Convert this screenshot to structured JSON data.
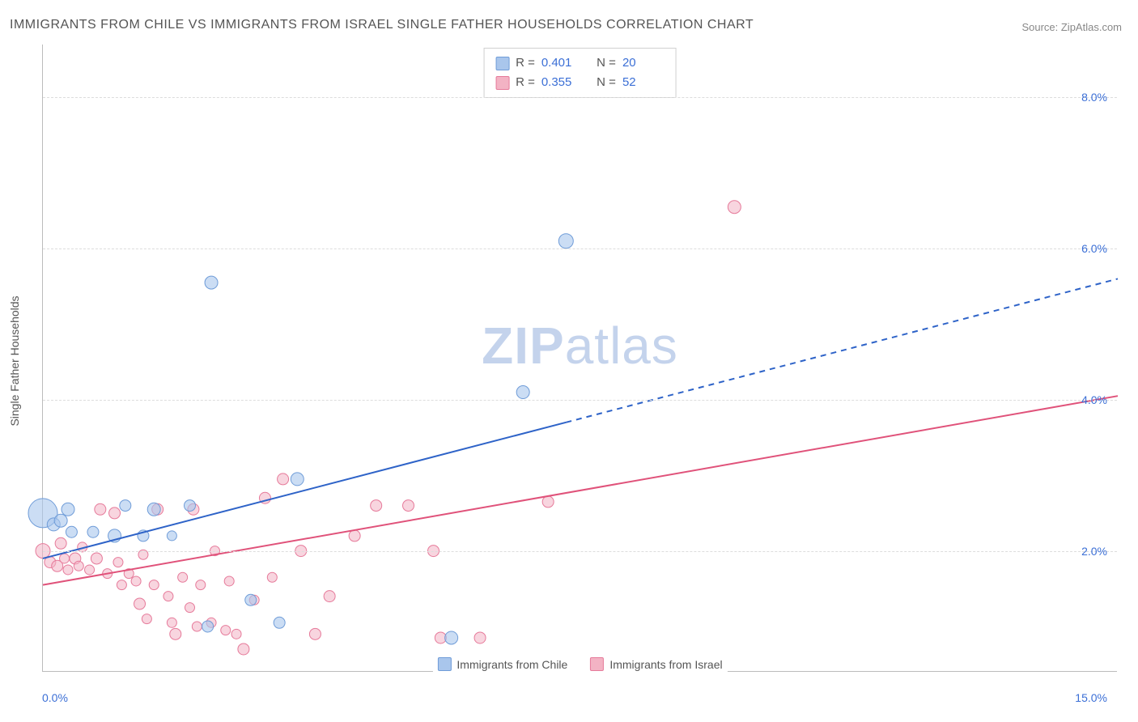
{
  "title": "IMMIGRANTS FROM CHILE VS IMMIGRANTS FROM ISRAEL SINGLE FATHER HOUSEHOLDS CORRELATION CHART",
  "source": "Source: ZipAtlas.com",
  "watermark_bold": "ZIP",
  "watermark_light": "atlas",
  "y_axis_title": "Single Father Households",
  "chart": {
    "type": "scatter",
    "background_color": "#ffffff",
    "grid_color": "#dddddd",
    "axis_color": "#bbbbbb",
    "tick_label_color": "#3b6fd6",
    "xlim": [
      0,
      15
    ],
    "ylim": [
      0.4,
      8.7
    ],
    "x_ticks": [
      {
        "value": 0,
        "label": "0.0%"
      },
      {
        "value": 15,
        "label": "15.0%"
      }
    ],
    "y_ticks": [
      {
        "value": 2,
        "label": "2.0%"
      },
      {
        "value": 4,
        "label": "4.0%"
      },
      {
        "value": 6,
        "label": "6.0%"
      },
      {
        "value": 8,
        "label": "8.0%"
      }
    ],
    "series": [
      {
        "name": "Immigrants from Chile",
        "marker_fill": "#a9c6ec",
        "marker_stroke": "#6f9cd8",
        "marker_fill_opacity": 0.6,
        "line_color": "#2e63c8",
        "line_width": 2,
        "r_value": "0.401",
        "n_value": "20",
        "trend": {
          "x1": 0,
          "y1": 1.9,
          "x2": 15,
          "y2": 5.6,
          "solid_until_x": 7.3
        },
        "points": [
          {
            "x": 0.0,
            "y": 2.5,
            "r": 18
          },
          {
            "x": 0.15,
            "y": 2.35,
            "r": 8
          },
          {
            "x": 0.25,
            "y": 2.4,
            "r": 8
          },
          {
            "x": 0.35,
            "y": 2.55,
            "r": 8
          },
          {
            "x": 0.4,
            "y": 2.25,
            "r": 7
          },
          {
            "x": 0.7,
            "y": 2.25,
            "r": 7
          },
          {
            "x": 1.0,
            "y": 2.2,
            "r": 8
          },
          {
            "x": 1.15,
            "y": 2.6,
            "r": 7
          },
          {
            "x": 1.4,
            "y": 2.2,
            "r": 7
          },
          {
            "x": 1.55,
            "y": 2.55,
            "r": 8
          },
          {
            "x": 1.8,
            "y": 2.2,
            "r": 6
          },
          {
            "x": 2.05,
            "y": 2.6,
            "r": 7
          },
          {
            "x": 2.3,
            "y": 1.0,
            "r": 7
          },
          {
            "x": 2.35,
            "y": 5.55,
            "r": 8
          },
          {
            "x": 2.9,
            "y": 1.35,
            "r": 7
          },
          {
            "x": 3.3,
            "y": 1.05,
            "r": 7
          },
          {
            "x": 3.55,
            "y": 2.95,
            "r": 8
          },
          {
            "x": 5.7,
            "y": 0.85,
            "r": 8
          },
          {
            "x": 6.7,
            "y": 4.1,
            "r": 8
          },
          {
            "x": 7.3,
            "y": 6.1,
            "r": 9
          }
        ]
      },
      {
        "name": "Immigrants from Israel",
        "marker_fill": "#f3b3c4",
        "marker_stroke": "#e67a9a",
        "marker_fill_opacity": 0.55,
        "line_color": "#e0527a",
        "line_width": 2,
        "r_value": "0.355",
        "n_value": "52",
        "trend": {
          "x1": 0,
          "y1": 1.55,
          "x2": 15,
          "y2": 4.05,
          "solid_until_x": 15
        },
        "points": [
          {
            "x": 0.0,
            "y": 2.0,
            "r": 9
          },
          {
            "x": 0.1,
            "y": 1.85,
            "r": 7
          },
          {
            "x": 0.2,
            "y": 1.8,
            "r": 7
          },
          {
            "x": 0.25,
            "y": 2.1,
            "r": 7
          },
          {
            "x": 0.3,
            "y": 1.9,
            "r": 6
          },
          {
            "x": 0.35,
            "y": 1.75,
            "r": 6
          },
          {
            "x": 0.45,
            "y": 1.9,
            "r": 7
          },
          {
            "x": 0.5,
            "y": 1.8,
            "r": 6
          },
          {
            "x": 0.55,
            "y": 2.05,
            "r": 6
          },
          {
            "x": 0.65,
            "y": 1.75,
            "r": 6
          },
          {
            "x": 0.75,
            "y": 1.9,
            "r": 7
          },
          {
            "x": 0.8,
            "y": 2.55,
            "r": 7
          },
          {
            "x": 0.9,
            "y": 1.7,
            "r": 6
          },
          {
            "x": 1.0,
            "y": 2.5,
            "r": 7
          },
          {
            "x": 1.05,
            "y": 1.85,
            "r": 6
          },
          {
            "x": 1.1,
            "y": 1.55,
            "r": 6
          },
          {
            "x": 1.2,
            "y": 1.7,
            "r": 6
          },
          {
            "x": 1.3,
            "y": 1.6,
            "r": 6
          },
          {
            "x": 1.35,
            "y": 1.3,
            "r": 7
          },
          {
            "x": 1.4,
            "y": 1.95,
            "r": 6
          },
          {
            "x": 1.45,
            "y": 1.1,
            "r": 6
          },
          {
            "x": 1.55,
            "y": 1.55,
            "r": 6
          },
          {
            "x": 1.6,
            "y": 2.55,
            "r": 7
          },
          {
            "x": 1.75,
            "y": 1.4,
            "r": 6
          },
          {
            "x": 1.8,
            "y": 1.05,
            "r": 6
          },
          {
            "x": 1.85,
            "y": 0.9,
            "r": 7
          },
          {
            "x": 1.95,
            "y": 1.65,
            "r": 6
          },
          {
            "x": 2.05,
            "y": 1.25,
            "r": 6
          },
          {
            "x": 2.1,
            "y": 2.55,
            "r": 7
          },
          {
            "x": 2.15,
            "y": 1.0,
            "r": 6
          },
          {
            "x": 2.2,
            "y": 1.55,
            "r": 6
          },
          {
            "x": 2.35,
            "y": 1.05,
            "r": 6
          },
          {
            "x": 2.4,
            "y": 2.0,
            "r": 6
          },
          {
            "x": 2.55,
            "y": 0.95,
            "r": 6
          },
          {
            "x": 2.6,
            "y": 1.6,
            "r": 6
          },
          {
            "x": 2.7,
            "y": 0.9,
            "r": 6
          },
          {
            "x": 2.8,
            "y": 0.7,
            "r": 7
          },
          {
            "x": 2.95,
            "y": 1.35,
            "r": 6
          },
          {
            "x": 3.1,
            "y": 2.7,
            "r": 7
          },
          {
            "x": 3.2,
            "y": 1.65,
            "r": 6
          },
          {
            "x": 3.35,
            "y": 2.95,
            "r": 7
          },
          {
            "x": 3.6,
            "y": 2.0,
            "r": 7
          },
          {
            "x": 3.8,
            "y": 0.9,
            "r": 7
          },
          {
            "x": 4.0,
            "y": 1.4,
            "r": 7
          },
          {
            "x": 4.35,
            "y": 2.2,
            "r": 7
          },
          {
            "x": 4.65,
            "y": 2.6,
            "r": 7
          },
          {
            "x": 5.1,
            "y": 2.6,
            "r": 7
          },
          {
            "x": 5.45,
            "y": 2.0,
            "r": 7
          },
          {
            "x": 5.55,
            "y": 0.85,
            "r": 7
          },
          {
            "x": 6.1,
            "y": 0.85,
            "r": 7
          },
          {
            "x": 7.05,
            "y": 2.65,
            "r": 7
          },
          {
            "x": 9.65,
            "y": 6.55,
            "r": 8
          }
        ]
      }
    ],
    "legend_bottom": [
      {
        "label": "Immigrants from Chile",
        "fill": "#a9c6ec",
        "stroke": "#6f9cd8"
      },
      {
        "label": "Immigrants from Israel",
        "fill": "#f3b3c4",
        "stroke": "#e67a9a"
      }
    ]
  }
}
